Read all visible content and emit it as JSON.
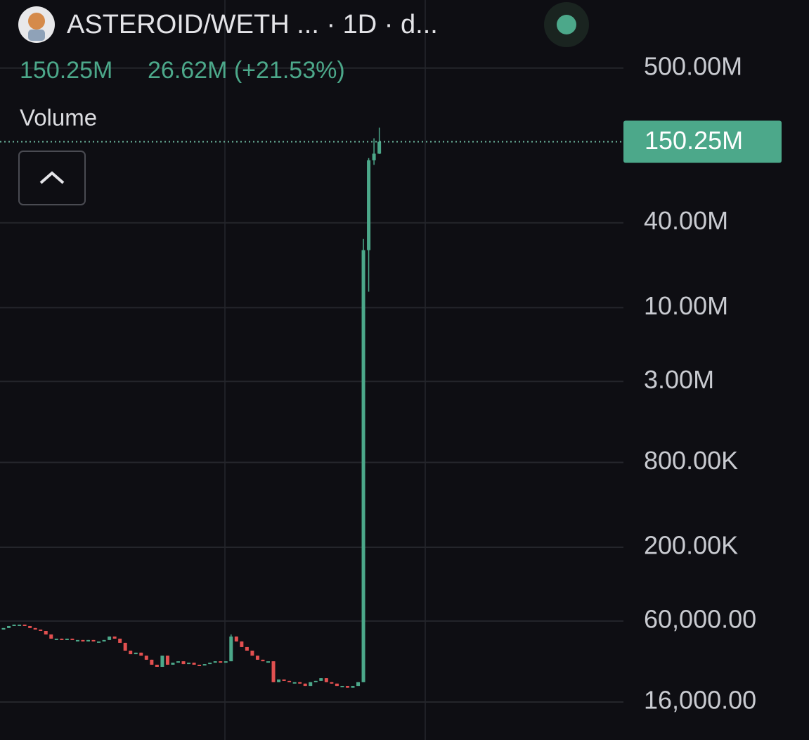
{
  "header": {
    "title": "ASTEROID/WETH ... · 1D · d...",
    "last": "150.25M",
    "change": "26.62M (+21.53%)"
  },
  "chart_data": {
    "type": "candlestick",
    "pane_label": "Volume",
    "log_scale": true,
    "grid": true,
    "up_color": "#4ca88a",
    "down_color": "#e25050",
    "ylim": [
      8600,
      1520000000
    ],
    "yticks": [
      {
        "value": 500000000,
        "label": "500.00M"
      },
      {
        "value": 40000000,
        "label": "40.00M"
      },
      {
        "value": 10000000,
        "label": "10.00M"
      },
      {
        "value": 3000000,
        "label": "3.00M"
      },
      {
        "value": 800000,
        "label": "800.00K"
      },
      {
        "value": 200000,
        "label": "200.00K"
      },
      {
        "value": 60000,
        "label": "60,000.00"
      },
      {
        "value": 16000,
        "label": "16,000.00"
      }
    ],
    "last_price": {
      "value": 150250000,
      "label": "150.25M"
    },
    "open": [
      52200,
      53500,
      55300,
      56600,
      56600,
      55300,
      53500,
      52200,
      51000,
      48200,
      45000,
      45000,
      44000,
      45000,
      44000,
      44000,
      43000,
      44000,
      43000,
      43000,
      44000,
      46600,
      45000,
      42000,
      37000,
      34900,
      35800,
      34100,
      31900,
      29400,
      28400,
      34100,
      29400,
      30400,
      31100,
      29700,
      30400,
      29400,
      29100,
      29700,
      30400,
      31100,
      30400,
      31100,
      46600,
      43000,
      39200,
      37000,
      34100,
      31900,
      31100,
      31100,
      22100,
      23100,
      22600,
      22100,
      22100,
      21600,
      20800,
      22100,
      22600,
      23600,
      22100,
      21600,
      20800,
      20800,
      20200,
      20800,
      22100,
      25600000,
      111000000,
      123630000
    ],
    "high": [
      53500,
      55300,
      56600,
      56600,
      56600,
      55300,
      53500,
      52200,
      51000,
      48200,
      45000,
      45000,
      45000,
      45000,
      44000,
      44000,
      44000,
      44000,
      43000,
      44000,
      46600,
      46600,
      45000,
      42000,
      37000,
      35800,
      35800,
      34100,
      31900,
      29400,
      34100,
      34100,
      30400,
      31100,
      31100,
      30400,
      30400,
      29400,
      29700,
      30400,
      31100,
      31100,
      31100,
      48200,
      46600,
      43000,
      39200,
      37000,
      34100,
      31900,
      31100,
      31100,
      23100,
      23100,
      22600,
      22100,
      22100,
      21600,
      22100,
      22600,
      23600,
      23600,
      22100,
      21600,
      20800,
      20800,
      20800,
      22100,
      30700000,
      115000000,
      159000000,
      189000000
    ],
    "low": [
      52200,
      53500,
      55300,
      56600,
      55300,
      53500,
      52200,
      51000,
      48200,
      45000,
      45000,
      44000,
      44000,
      44000,
      44000,
      43000,
      43000,
      43000,
      43000,
      43000,
      44000,
      45000,
      42000,
      37000,
      34900,
      34900,
      34100,
      31900,
      29400,
      28400,
      28400,
      29400,
      29400,
      30400,
      29700,
      29700,
      29400,
      29100,
      29100,
      29700,
      30400,
      30400,
      30400,
      31100,
      43000,
      39200,
      37000,
      34100,
      31900,
      31100,
      31100,
      22100,
      22100,
      22600,
      22100,
      22100,
      21600,
      20800,
      20800,
      22100,
      22600,
      22100,
      21600,
      20800,
      20800,
      20200,
      20200,
      20800,
      22100,
      13000000,
      103000000,
      123000000
    ],
    "close": [
      53500,
      55300,
      56600,
      56600,
      55300,
      53500,
      52200,
      51000,
      48200,
      45000,
      45000,
      44000,
      45000,
      44000,
      44000,
      43000,
      44000,
      43000,
      43000,
      44000,
      46600,
      45000,
      42000,
      37000,
      34900,
      35800,
      34100,
      31900,
      29400,
      28400,
      34100,
      29400,
      30400,
      31100,
      29700,
      30400,
      29400,
      29100,
      29700,
      30400,
      31100,
      30400,
      31100,
      46600,
      43000,
      39200,
      37000,
      34100,
      31900,
      31100,
      31100,
      22100,
      23100,
      22600,
      22100,
      22100,
      21600,
      20800,
      22100,
      22600,
      23600,
      22100,
      21600,
      20800,
      20800,
      20200,
      20800,
      22100,
      25600000,
      111000000,
      123630000,
      150250000
    ]
  }
}
